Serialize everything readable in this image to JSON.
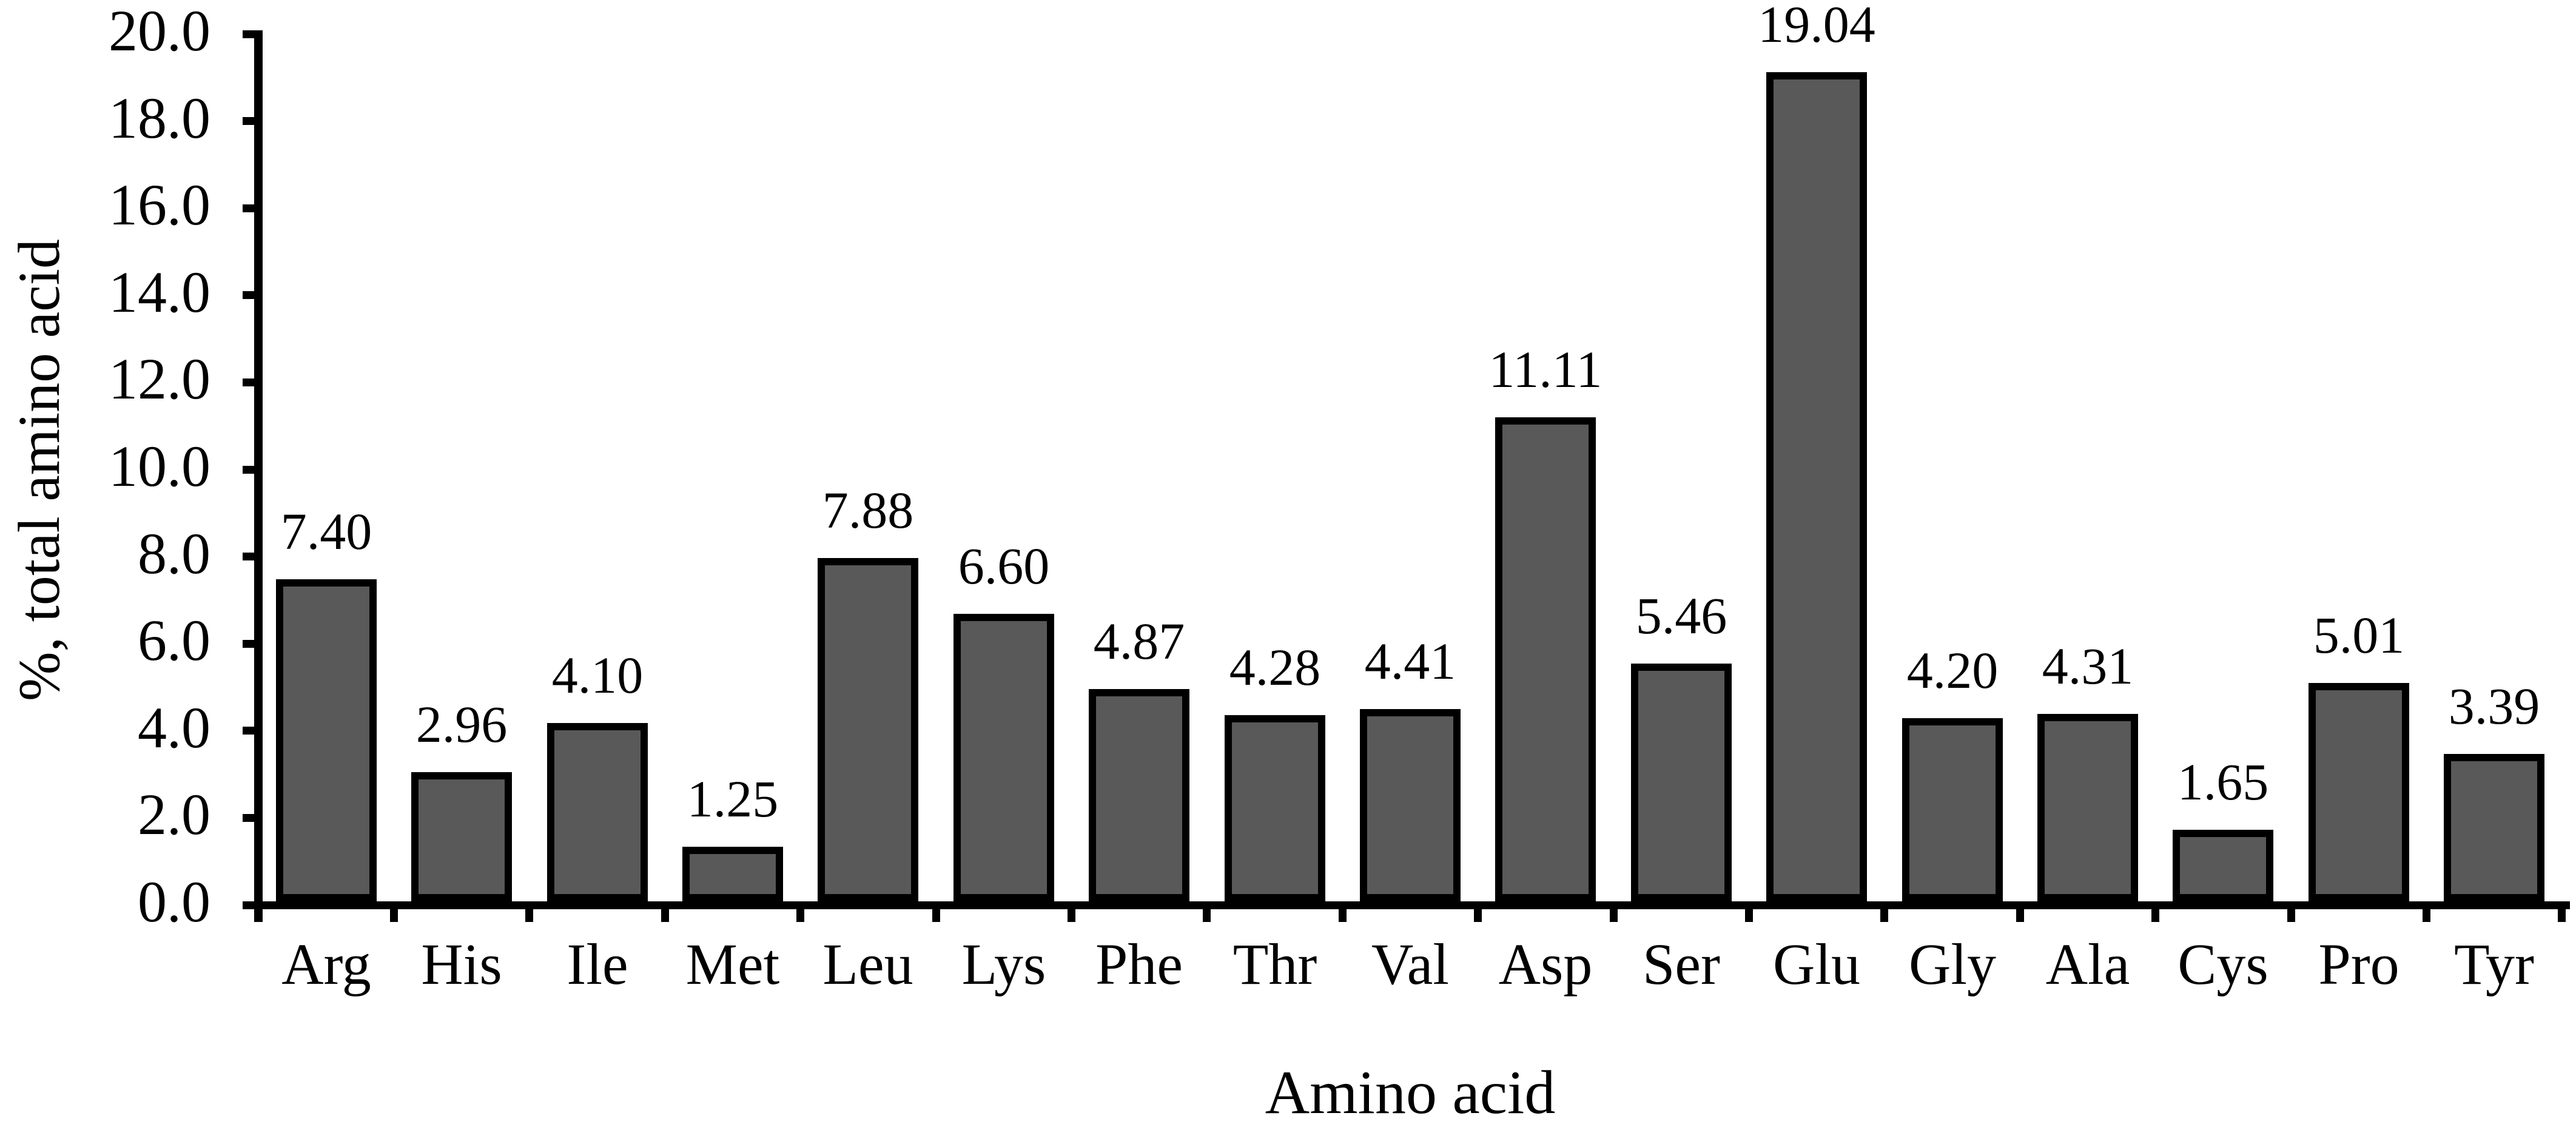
{
  "chart_data": {
    "type": "bar",
    "title": "",
    "xlabel": "Amino acid",
    "ylabel": "%, total amino acid",
    "categories": [
      "Arg",
      "His",
      "Ile",
      "Met",
      "Leu",
      "Lys",
      "Phe",
      "Thr",
      "Val",
      "Asp",
      "Ser",
      "Glu",
      "Gly",
      "Ala",
      "Cys",
      "Pro",
      "Tyr"
    ],
    "values": [
      7.4,
      2.96,
      4.1,
      1.25,
      7.88,
      6.6,
      4.87,
      4.28,
      4.41,
      11.11,
      5.46,
      19.04,
      4.2,
      4.31,
      1.65,
      5.01,
      3.39
    ],
    "value_labels": [
      "7.40",
      "2.96",
      "4.10",
      "1.25",
      "7.88",
      "6.60",
      "4.87",
      "4.28",
      "4.41",
      "11.11",
      "5.46",
      "19.04",
      "4.20",
      "4.31",
      "1.65",
      "5.01",
      "3.39"
    ],
    "ylim": [
      0,
      20
    ],
    "ytick_step": 2,
    "ytick_labels": [
      "0.0",
      "2.0",
      "4.0",
      "6.0",
      "8.0",
      "10.0",
      "12.0",
      "14.0",
      "16.0",
      "18.0",
      "20.0"
    ],
    "grid": false,
    "legend": null,
    "bar_fill_color": "#595959",
    "bar_border_color": "#000000",
    "axis_color": "#000000",
    "text_color": "#000000",
    "background_color": "#ffffff"
  }
}
